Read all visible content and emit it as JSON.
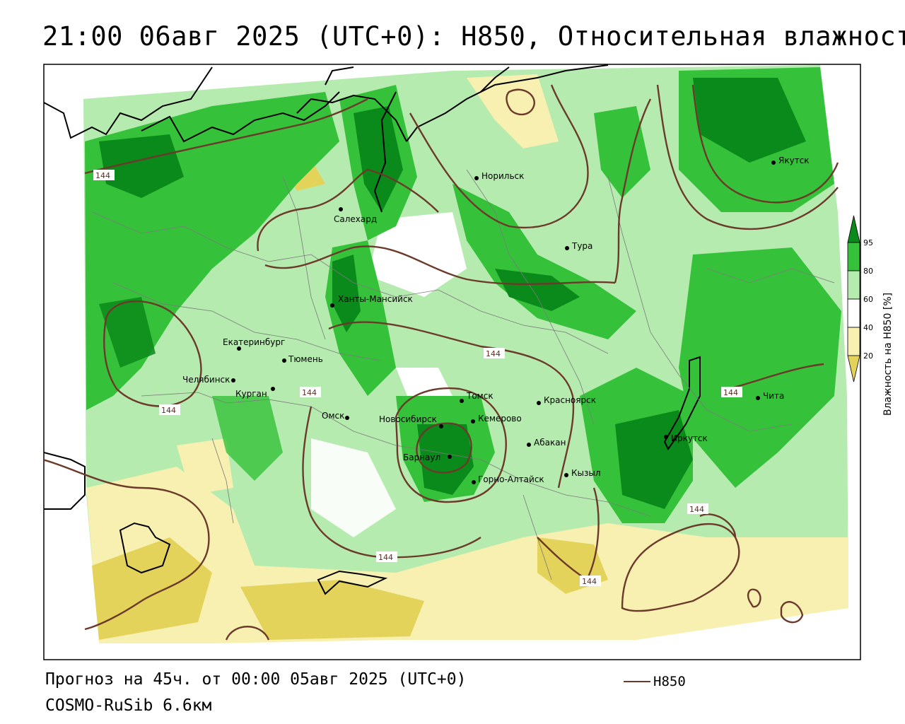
{
  "title": "21:00 06авг 2025 (UTC+0): H850, Относительная влажность",
  "footer": {
    "forecast": "Прогноз на 45ч. от 00:00 05авг 2025 (UTC+0)",
    "model": "COSMO-RuSib 6.6км"
  },
  "legend": {
    "line_label": "H850"
  },
  "colorbar": {
    "title": "Влажность на H850 [%]",
    "ticks": [
      "95",
      "80",
      "60",
      "40",
      "20"
    ]
  },
  "isoline_labels": [
    "144",
    "144",
    "144",
    "144",
    "144",
    "144",
    "144"
  ],
  "cities": [
    "Норильск",
    "Якутск",
    "Салехард",
    "Тура",
    "Ханты-Мансийск",
    "Екатеринбург",
    "Тюмень",
    "Челябинск",
    "Курган",
    "Омск",
    "Новосибирск",
    "Томск",
    "Кемерово",
    "Красноярск",
    "Абакан",
    "Барнаул",
    "Горно-Алтайск",
    "Кызыл",
    "Иркутск",
    "Чита"
  ],
  "colors": {
    "line_brown": "#6b3a2a",
    "green_95": "#0a8a1a",
    "green_80": "#35c23a",
    "green_60": "#b6ebb0",
    "white_50": "#ffffff",
    "yellow_40": "#f7f0b0",
    "yellow_20": "#e4d35a"
  }
}
